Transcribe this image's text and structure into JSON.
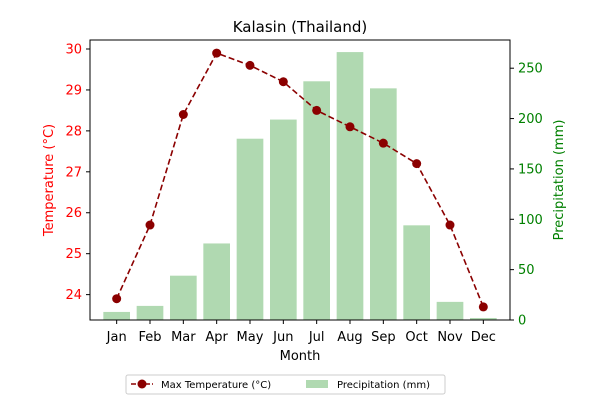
{
  "chart_data": {
    "type": "bar+line",
    "title": "Kalasin (Thailand)",
    "xlabel": "Month",
    "categories": [
      "Jan",
      "Feb",
      "Mar",
      "Apr",
      "May",
      "Jun",
      "Jul",
      "Aug",
      "Sep",
      "Oct",
      "Nov",
      "Dec"
    ],
    "y_left": {
      "label": "Temperature (°C)",
      "ylim": [
        23.38,
        30.22
      ],
      "ticks": [
        24,
        25,
        26,
        27,
        28,
        29,
        30
      ],
      "color": "#ff0000"
    },
    "y_right": {
      "label": "Precipitation (mm)",
      "ylim": [
        0,
        278
      ],
      "ticks": [
        0,
        50,
        100,
        150,
        200,
        250
      ],
      "color": "#008000"
    },
    "series": [
      {
        "name": "Max Temperature (°C)",
        "type": "line",
        "axis": "left",
        "color": "#8b0000",
        "values": [
          23.9,
          25.7,
          28.4,
          29.9,
          29.6,
          29.2,
          28.5,
          28.1,
          27.7,
          27.2,
          25.7,
          23.7
        ]
      },
      {
        "name": "Precipitation (mm)",
        "type": "bar",
        "axis": "right",
        "color": "#b0d9b1",
        "values": [
          8,
          14,
          44,
          76,
          180,
          199,
          237,
          266,
          230,
          94,
          18,
          2
        ]
      }
    ],
    "legend": {
      "placement": "bottom-center",
      "ncol": 2
    }
  }
}
